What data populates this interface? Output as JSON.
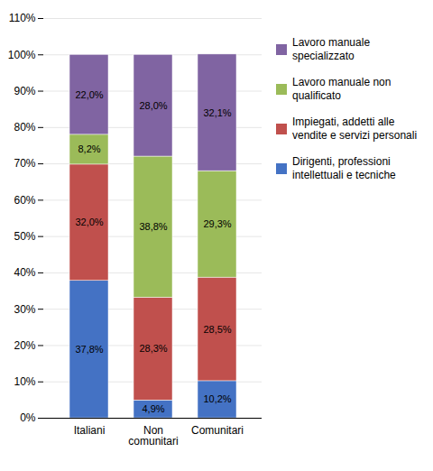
{
  "chart_data": {
    "type": "bar",
    "stacked": true,
    "categories": [
      "Italiani",
      "Non\ncomunitari",
      "Comunitari"
    ],
    "series": [
      {
        "name": "Dirigenti, professioni\nintellettuali e tecniche",
        "color": "#4472C4",
        "values": [
          37.8,
          4.9,
          10.2
        ],
        "value_labels": [
          "37,8%",
          "4,9%",
          "10,2%"
        ]
      },
      {
        "name": "Impiegati, addetti alle\nvendite e servizi personali",
        "color": "#C0504D",
        "values": [
          32.0,
          28.3,
          28.5
        ],
        "value_labels": [
          "32,0%",
          "28,3%",
          "28,5%"
        ]
      },
      {
        "name": "Lavoro manuale non\nqualificato",
        "color": "#9BBB59",
        "values": [
          8.2,
          38.8,
          29.3
        ],
        "value_labels": [
          "8,2%",
          "38,8%",
          "29,3%"
        ]
      },
      {
        "name": "Lavoro manuale\nspecializzato",
        "color": "#8064A2",
        "values": [
          22.0,
          28.0,
          32.1
        ],
        "value_labels": [
          "22,0%",
          "28,0%",
          "32,1%"
        ]
      }
    ],
    "ylim": [
      0,
      110
    ],
    "yticks": [
      {
        "value": 0,
        "label": "0%"
      },
      {
        "value": 10,
        "label": "10%"
      },
      {
        "value": 20,
        "label": "20%"
      },
      {
        "value": 30,
        "label": "30%"
      },
      {
        "value": 40,
        "label": "40%"
      },
      {
        "value": 50,
        "label": "50%"
      },
      {
        "value": 60,
        "label": "60%"
      },
      {
        "value": 70,
        "label": "70%"
      },
      {
        "value": 80,
        "label": "80%"
      },
      {
        "value": 90,
        "label": "90%"
      },
      {
        "value": 100,
        "label": "100%"
      },
      {
        "value": 110,
        "label": "110%"
      }
    ],
    "grid": true,
    "data_labels": true,
    "legend": "right"
  }
}
